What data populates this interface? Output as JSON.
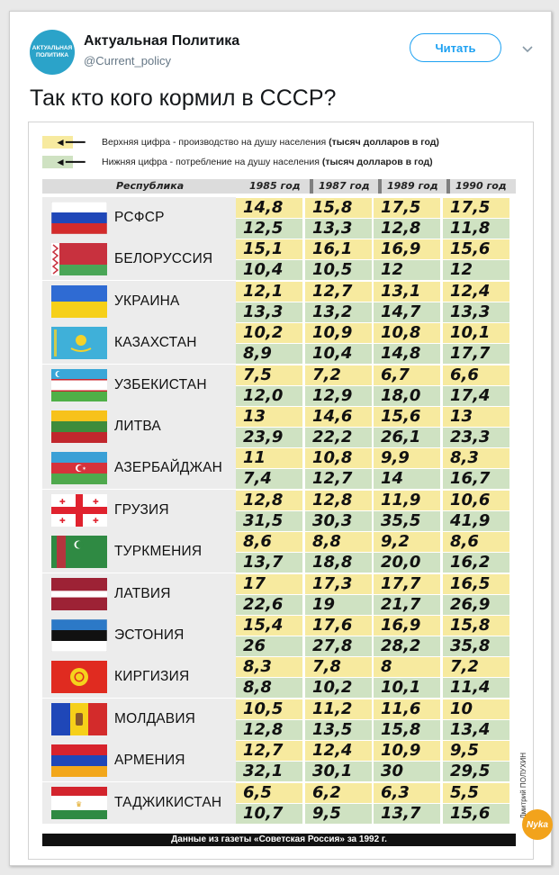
{
  "account": {
    "avatar_text": "АКТУАЛЬНАЯ ПОЛИТИКА",
    "name": "Актуальная Политика",
    "handle": "@Current_policy",
    "follow_label": "Читать"
  },
  "tweet": {
    "text": "Так кто кого кормил в СССР?"
  },
  "infographic": {
    "legend_top": {
      "prefix": "Верхняя цифра - производство на душу населения ",
      "bold": "(тысяч долларов в год)",
      "color": "#f7ea9f"
    },
    "legend_bottom": {
      "prefix": "Нижняя цифра - потребление на душу населения ",
      "bold": "(тысяч долларов в год)",
      "color": "#cfe2c2"
    },
    "header": {
      "republic": "Республика",
      "years": [
        "1985 год",
        "1987 год",
        "1989 год",
        "1990 год"
      ]
    },
    "rows": [
      {
        "name": "РСФСР",
        "flag": "russia",
        "top": [
          "14,8",
          "15,8",
          "17,5",
          "17,5"
        ],
        "bottom": [
          "12,5",
          "13,3",
          "12,8",
          "11,8"
        ]
      },
      {
        "name": "БЕЛОРУССИЯ",
        "flag": "belarus",
        "top": [
          "15,1",
          "16,1",
          "16,9",
          "15,6"
        ],
        "bottom": [
          "10,4",
          "10,5",
          "12",
          "12"
        ]
      },
      {
        "name": "УКРАИНА",
        "flag": "ukraine",
        "top": [
          "12,1",
          "12,7",
          "13,1",
          "12,4"
        ],
        "bottom": [
          "13,3",
          "13,2",
          "14,7",
          "13,3"
        ]
      },
      {
        "name": "КАЗАХСТАН",
        "flag": "kazakhstan",
        "top": [
          "10,2",
          "10,9",
          "10,8",
          "10,1"
        ],
        "bottom": [
          "8,9",
          "10,4",
          "14,8",
          "17,7"
        ]
      },
      {
        "name": "УЗБЕКИСТАН",
        "flag": "uzbekistan",
        "top": [
          "7,5",
          "7,2",
          "6,7",
          "6,6"
        ],
        "bottom": [
          "12,0",
          "12,9",
          "18,0",
          "17,4"
        ]
      },
      {
        "name": "ЛИТВА",
        "flag": "lithuania",
        "top": [
          "13",
          "14,6",
          "15,6",
          "13"
        ],
        "bottom": [
          "23,9",
          "22,2",
          "26,1",
          "23,3"
        ]
      },
      {
        "name": "АЗЕРБАЙДЖАН",
        "flag": "azerbaijan",
        "top": [
          "11",
          "10,8",
          "9,9",
          "8,3"
        ],
        "bottom": [
          "7,4",
          "12,7",
          "14",
          "16,7"
        ]
      },
      {
        "name": "ГРУЗИЯ",
        "flag": "georgia",
        "top": [
          "12,8",
          "12,8",
          "11,9",
          "10,6"
        ],
        "bottom": [
          "31,5",
          "30,3",
          "35,5",
          "41,9"
        ]
      },
      {
        "name": "ТУРКМЕНИЯ",
        "flag": "turkmenistan",
        "top": [
          "8,6",
          "8,8",
          "9,2",
          "8,6"
        ],
        "bottom": [
          "13,7",
          "18,8",
          "20,0",
          "16,2"
        ]
      },
      {
        "name": "ЛАТВИЯ",
        "flag": "latvia",
        "top": [
          "17",
          "17,3",
          "17,7",
          "16,5"
        ],
        "bottom": [
          "22,6",
          "19",
          "21,7",
          "26,9"
        ]
      },
      {
        "name": "ЭСТОНИЯ",
        "flag": "estonia",
        "top": [
          "15,4",
          "17,6",
          "16,9",
          "15,8"
        ],
        "bottom": [
          "26",
          "27,8",
          "28,2",
          "35,8"
        ]
      },
      {
        "name": "КИРГИЗИЯ",
        "flag": "kyrgyzstan",
        "top": [
          "8,3",
          "7,8",
          "8",
          "7,2"
        ],
        "bottom": [
          "8,8",
          "10,2",
          "10,1",
          "11,4"
        ]
      },
      {
        "name": "МОЛДАВИЯ",
        "flag": "moldova",
        "top": [
          "10,5",
          "11,2",
          "11,6",
          "10"
        ],
        "bottom": [
          "12,8",
          "13,5",
          "15,8",
          "13,4"
        ]
      },
      {
        "name": "АРМЕНИЯ",
        "flag": "armenia",
        "top": [
          "12,7",
          "12,4",
          "10,9",
          "9,5"
        ],
        "bottom": [
          "32,1",
          "30,1",
          "30",
          "29,5"
        ]
      },
      {
        "name": "ТАДЖИКИСТАН",
        "flag": "tajikistan",
        "top": [
          "6,5",
          "6,2",
          "6,3",
          "5,5"
        ],
        "bottom": [
          "10,7",
          "9,5",
          "13,7",
          "15,6"
        ]
      }
    ],
    "footer": "Данные из газеты «Советская Россия» за 1992 г.",
    "author_credit": "Дмитрий ПОЛУХИН",
    "badge_text": "Nyka"
  }
}
